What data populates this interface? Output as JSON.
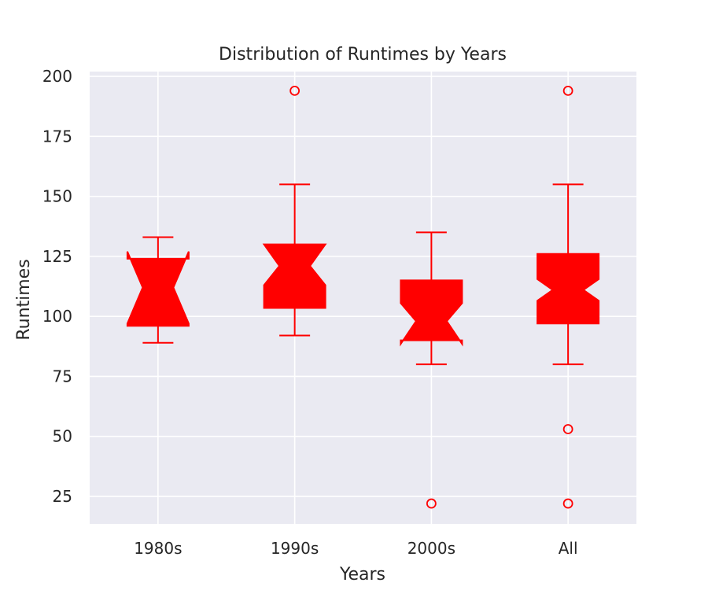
{
  "chart_data": {
    "type": "box",
    "title": "Distribution of Runtimes by Years",
    "xlabel": "Years",
    "ylabel": "Runtimes",
    "ylim": [
      13.5,
      202
    ],
    "yticks": [
      25,
      50,
      75,
      100,
      125,
      150,
      175,
      200
    ],
    "grid": true,
    "notched": true,
    "box_color": "#ff0000",
    "background_color": "#eaeaf2",
    "grid_color": "#ffffff",
    "categories": [
      "1980s",
      "1990s",
      "2000s",
      "All"
    ],
    "boxes": [
      {
        "label": "1980s",
        "whisker_low": 89,
        "q1": 96,
        "median": 112,
        "q3": 124,
        "whisker_high": 133,
        "notch_low": 97,
        "notch_high": 127,
        "outliers": []
      },
      {
        "label": "1990s",
        "whisker_low": 92,
        "q1": 103.5,
        "median": 121,
        "q3": 130,
        "whisker_high": 155,
        "notch_low": 113,
        "notch_high": 130,
        "outliers": [
          194
        ]
      },
      {
        "label": "2000s",
        "whisker_low": 80,
        "q1": 90,
        "median": 98,
        "q3": 115,
        "whisker_high": 135,
        "notch_low": 88.5,
        "notch_high": 105.5,
        "outliers": [
          22
        ]
      },
      {
        "label": "All",
        "whisker_low": 80,
        "q1": 97,
        "median": 111,
        "q3": 126,
        "whisker_high": 155,
        "notch_low": 106.5,
        "notch_high": 115.5,
        "outliers": [
          194,
          53,
          22
        ]
      }
    ]
  }
}
